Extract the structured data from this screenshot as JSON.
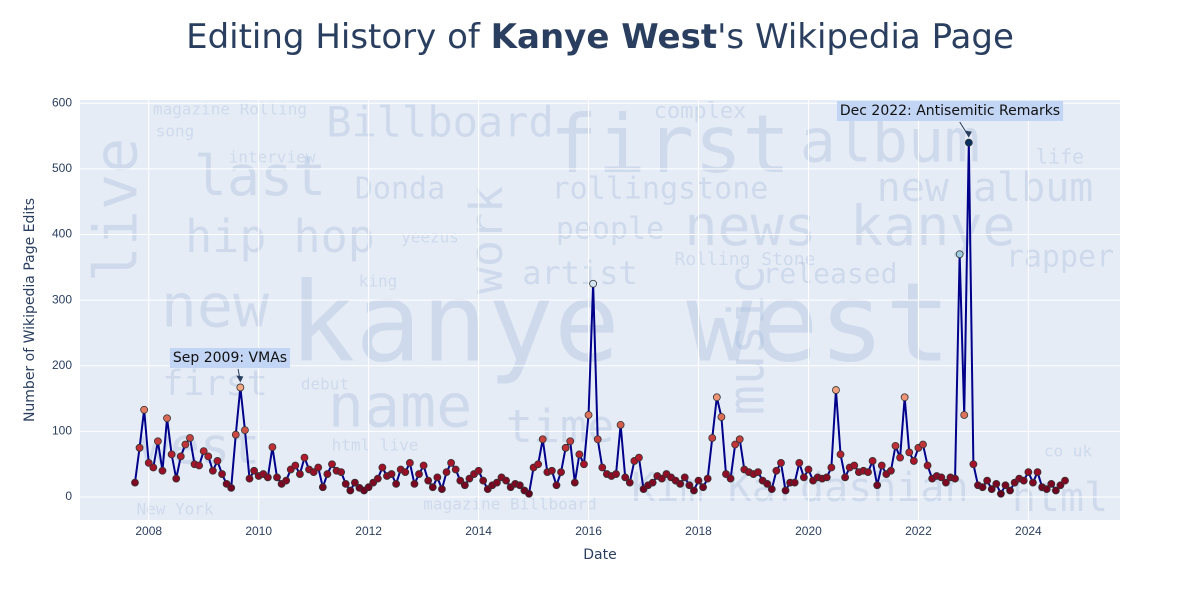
{
  "chart_data": {
    "type": "line",
    "title": {
      "prefix": "Editing History of ",
      "bold": "Kanye West",
      "suffix": "'s Wikipedia Page"
    },
    "x_label": "Date",
    "y_label": "Number of Wikipedia Page Edits",
    "x": [
      "2007-10",
      "2007-11",
      "2007-12",
      "2008-01",
      "2008-02",
      "2008-03",
      "2008-04",
      "2008-05",
      "2008-06",
      "2008-07",
      "2008-08",
      "2008-09",
      "2008-10",
      "2008-11",
      "2008-12",
      "2009-01",
      "2009-02",
      "2009-03",
      "2009-04",
      "2009-05",
      "2009-06",
      "2009-07",
      "2009-08",
      "2009-09",
      "2009-10",
      "2009-11",
      "2009-12",
      "2010-01",
      "2010-02",
      "2010-03",
      "2010-04",
      "2010-05",
      "2010-06",
      "2010-07",
      "2010-08",
      "2010-09",
      "2010-10",
      "2010-11",
      "2010-12",
      "2011-01",
      "2011-02",
      "2011-03",
      "2011-04",
      "2011-05",
      "2011-06",
      "2011-07",
      "2011-08",
      "2011-09",
      "2011-10",
      "2011-11",
      "2011-12",
      "2012-01",
      "2012-02",
      "2012-03",
      "2012-04",
      "2012-05",
      "2012-06",
      "2012-07",
      "2012-08",
      "2012-09",
      "2012-10",
      "2012-11",
      "2012-12",
      "2013-01",
      "2013-02",
      "2013-03",
      "2013-04",
      "2013-05",
      "2013-06",
      "2013-07",
      "2013-08",
      "2013-09",
      "2013-10",
      "2013-11",
      "2013-12",
      "2014-01",
      "2014-02",
      "2014-03",
      "2014-04",
      "2014-05",
      "2014-06",
      "2014-07",
      "2014-08",
      "2014-09",
      "2014-10",
      "2014-11",
      "2014-12",
      "2015-01",
      "2015-02",
      "2015-03",
      "2015-04",
      "2015-05",
      "2015-06",
      "2015-07",
      "2015-08",
      "2015-09",
      "2015-10",
      "2015-11",
      "2015-12",
      "2016-01",
      "2016-02",
      "2016-03",
      "2016-04",
      "2016-05",
      "2016-06",
      "2016-07",
      "2016-08",
      "2016-09",
      "2016-10",
      "2016-11",
      "2016-12",
      "2017-01",
      "2017-02",
      "2017-03",
      "2017-04",
      "2017-05",
      "2017-06",
      "2017-07",
      "2017-08",
      "2017-09",
      "2017-10",
      "2017-11",
      "2017-12",
      "2018-01",
      "2018-02",
      "2018-03",
      "2018-04",
      "2018-05",
      "2018-06",
      "2018-07",
      "2018-08",
      "2018-09",
      "2018-10",
      "2018-11",
      "2018-12",
      "2019-01",
      "2019-02",
      "2019-03",
      "2019-04",
      "2019-05",
      "2019-06",
      "2019-07",
      "2019-08",
      "2019-09",
      "2019-10",
      "2019-11",
      "2019-12",
      "2020-01",
      "2020-02",
      "2020-03",
      "2020-04",
      "2020-05",
      "2020-06",
      "2020-07",
      "2020-08",
      "2020-09",
      "2020-10",
      "2020-11",
      "2020-12",
      "2021-01",
      "2021-02",
      "2021-03",
      "2021-04",
      "2021-05",
      "2021-06",
      "2021-07",
      "2021-08",
      "2021-09",
      "2021-10",
      "2021-11",
      "2021-12",
      "2022-01",
      "2022-02",
      "2022-03",
      "2022-04",
      "2022-05",
      "2022-06",
      "2022-07",
      "2022-08",
      "2022-09",
      "2022-10",
      "2022-11",
      "2022-12",
      "2023-01",
      "2023-02",
      "2023-03",
      "2023-04",
      "2023-05",
      "2023-06",
      "2023-07",
      "2023-08",
      "2023-09",
      "2023-10",
      "2023-11",
      "2023-12",
      "2024-01",
      "2024-02",
      "2024-03",
      "2024-04",
      "2024-05",
      "2024-06",
      "2024-07",
      "2024-08",
      "2024-09"
    ],
    "values": [
      22,
      75,
      133,
      52,
      45,
      85,
      40,
      120,
      65,
      28,
      62,
      80,
      90,
      50,
      48,
      70,
      62,
      40,
      55,
      35,
      20,
      14,
      95,
      167,
      102,
      28,
      40,
      32,
      35,
      30,
      76,
      30,
      20,
      25,
      42,
      48,
      35,
      60,
      42,
      38,
      45,
      15,
      35,
      50,
      40,
      38,
      20,
      10,
      22,
      14,
      10,
      15,
      22,
      28,
      45,
      32,
      35,
      20,
      42,
      38,
      52,
      20,
      35,
      48,
      25,
      15,
      30,
      12,
      38,
      52,
      42,
      25,
      18,
      28,
      35,
      40,
      25,
      12,
      18,
      22,
      30,
      25,
      15,
      20,
      18,
      10,
      5,
      45,
      50,
      88,
      38,
      40,
      18,
      38,
      75,
      85,
      22,
      65,
      50,
      125,
      325,
      88,
      45,
      35,
      32,
      35,
      110,
      30,
      22,
      55,
      60,
      12,
      18,
      22,
      32,
      28,
      35,
      30,
      25,
      20,
      30,
      18,
      10,
      25,
      15,
      28,
      90,
      152,
      122,
      35,
      28,
      80,
      88,
      42,
      38,
      35,
      38,
      25,
      20,
      12,
      40,
      52,
      10,
      22,
      22,
      52,
      30,
      42,
      25,
      30,
      28,
      30,
      45,
      163,
      65,
      30,
      45,
      48,
      38,
      40,
      38,
      55,
      18,
      48,
      35,
      40,
      78,
      60,
      152,
      68,
      55,
      75,
      80,
      48,
      28,
      32,
      30,
      22,
      30,
      28,
      370,
      125,
      540,
      50,
      18,
      15,
      25,
      12,
      20,
      5,
      18,
      10,
      22,
      28,
      25,
      38,
      22,
      38,
      15,
      12,
      20,
      10,
      18,
      25
    ],
    "line_color": "#00008b",
    "marker_colorscale": [
      "#67001f",
      "#b2182b",
      "#d6604d",
      "#f4a582",
      "#fddbc7",
      "#f7f7f7",
      "#d1e5f0",
      "#92c5de",
      "#4393c3",
      "#2166ac",
      "#053061"
    ],
    "xlim": [
      "2006-10",
      "2025-09"
    ],
    "xticks": [
      {
        "value": "2008-01",
        "label": "2008"
      },
      {
        "value": "2010-01",
        "label": "2010"
      },
      {
        "value": "2012-01",
        "label": "2012"
      },
      {
        "value": "2014-01",
        "label": "2014"
      },
      {
        "value": "2016-01",
        "label": "2016"
      },
      {
        "value": "2018-01",
        "label": "2018"
      },
      {
        "value": "2020-01",
        "label": "2020"
      },
      {
        "value": "2022-01",
        "label": "2022"
      },
      {
        "value": "2024-01",
        "label": "2024"
      }
    ],
    "ylim": [
      -35,
      605
    ],
    "yticks": [
      0,
      100,
      200,
      300,
      400,
      500,
      600
    ],
    "grid": true,
    "annotations": [
      {
        "text": "Sep 2009: VMAs",
        "x": "2009-09",
        "y": 167
      },
      {
        "text": "Dec 2022: Antisemitic Remarks",
        "x": "2022-12",
        "y": 540
      }
    ],
    "word_cloud": [
      "kanye west",
      "first",
      "new",
      "live",
      "name",
      "news kanye",
      "new album",
      "hip hop",
      "last",
      "Billboard",
      "Donda",
      "people",
      "artist",
      "rapper",
      "Rolling Stone",
      "rollingstone",
      "music",
      "work",
      "time",
      "Kim Kardashian",
      "html",
      "magazine Rolling",
      "song",
      "interview",
      "yeezus",
      "king",
      "debut",
      "html live",
      "magazine Billboard",
      "New York",
      "co uk",
      "album",
      "complex",
      "life",
      "released",
      "west",
      "first"
    ]
  }
}
